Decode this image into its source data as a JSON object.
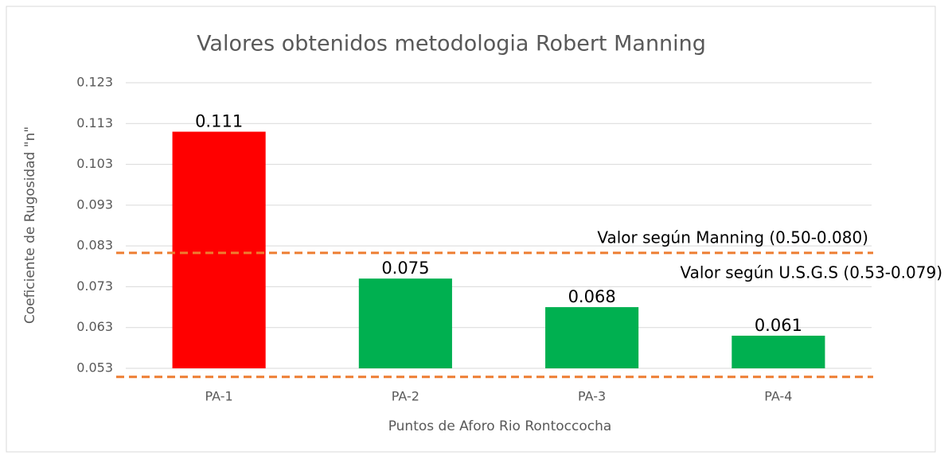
{
  "chart_data": {
    "type": "bar",
    "title": "Valores obtenidos metodologia Robert Manning",
    "x_label": "Puntos de Aforo Rio Rontoccocha",
    "y_label": "Coeficiente de Rugosidad \"n\"",
    "categories": [
      "PA-1",
      "PA-2",
      "PA-3",
      "PA-4"
    ],
    "values": [
      0.111,
      0.075,
      0.068,
      0.061
    ],
    "colors": [
      "#ff0000",
      "#00b050",
      "#00b050",
      "#00b050"
    ],
    "ylim": [
      0.053,
      0.123
    ],
    "yticks": [
      0.053,
      0.063,
      0.073,
      0.083,
      0.093,
      0.103,
      0.113,
      0.123
    ],
    "grid": true,
    "reference_lines": [
      {
        "label": "Valor según Manning (0.50-0.080)",
        "value": 0.0813,
        "color": "#ed7d31"
      },
      {
        "label": "Valor según U.S.G.S (0.53-0.079)",
        "value": 0.0509,
        "color": "#ed7d31"
      }
    ]
  }
}
